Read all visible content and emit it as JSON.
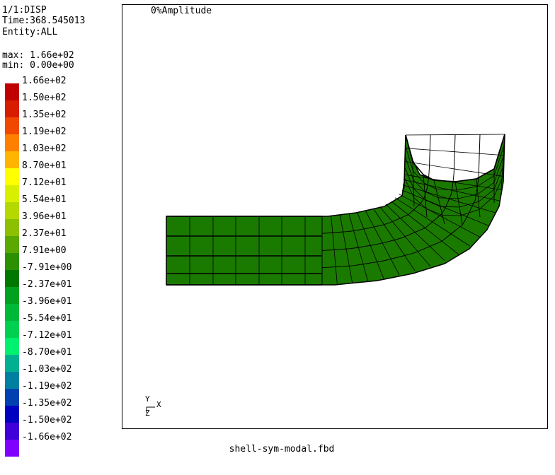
{
  "header": {
    "line1": "1/1:DISP",
    "line2": "Time:368.545013",
    "line3": "Entity:ALL",
    "max": "max: 1.66e+02",
    "min": "min: 0.00e+00"
  },
  "legend": [
    {
      "label": "1.66e+02",
      "color": "#c00000"
    },
    {
      "label": "1.50e+02",
      "color": "#d81c00"
    },
    {
      "label": "1.35e+02",
      "color": "#f04800"
    },
    {
      "label": "1.19e+02",
      "color": "#ff8000"
    },
    {
      "label": "1.03e+02",
      "color": "#ffb400"
    },
    {
      "label": "8.70e+01",
      "color": "#ffff00"
    },
    {
      "label": "7.12e+01",
      "color": "#d8f000"
    },
    {
      "label": "5.54e+01",
      "color": "#b4d800"
    },
    {
      "label": "3.96e+01",
      "color": "#8cc000"
    },
    {
      "label": "2.37e+01",
      "color": "#5aa800"
    },
    {
      "label": "7.91e+00",
      "color": "#2c9000"
    },
    {
      "label": "-7.91e+00",
      "color": "#007800"
    },
    {
      "label": "-2.37e+01",
      "color": "#00a020"
    },
    {
      "label": "-3.96e+01",
      "color": "#00b838"
    },
    {
      "label": "-5.54e+01",
      "color": "#00d050"
    },
    {
      "label": "-7.12e+01",
      "color": "#00f070"
    },
    {
      "label": "-8.70e+01",
      "color": "#00b090"
    },
    {
      "label": "-1.03e+02",
      "color": "#0080a0"
    },
    {
      "label": "-1.19e+02",
      "color": "#0040b0"
    },
    {
      "label": "-1.35e+02",
      "color": "#0000c0"
    },
    {
      "label": "-1.50e+02",
      "color": "#4000d8"
    },
    {
      "label": "-1.66e+02",
      "color": "#8000ff"
    }
  ],
  "viewport": {
    "title": "0%Amplitude",
    "mesh_color": "#1a7a00",
    "axes": {
      "y": "Y",
      "z": "Z",
      "x": "X"
    }
  },
  "footer": {
    "filename": "shell-sym-modal.fbd"
  }
}
